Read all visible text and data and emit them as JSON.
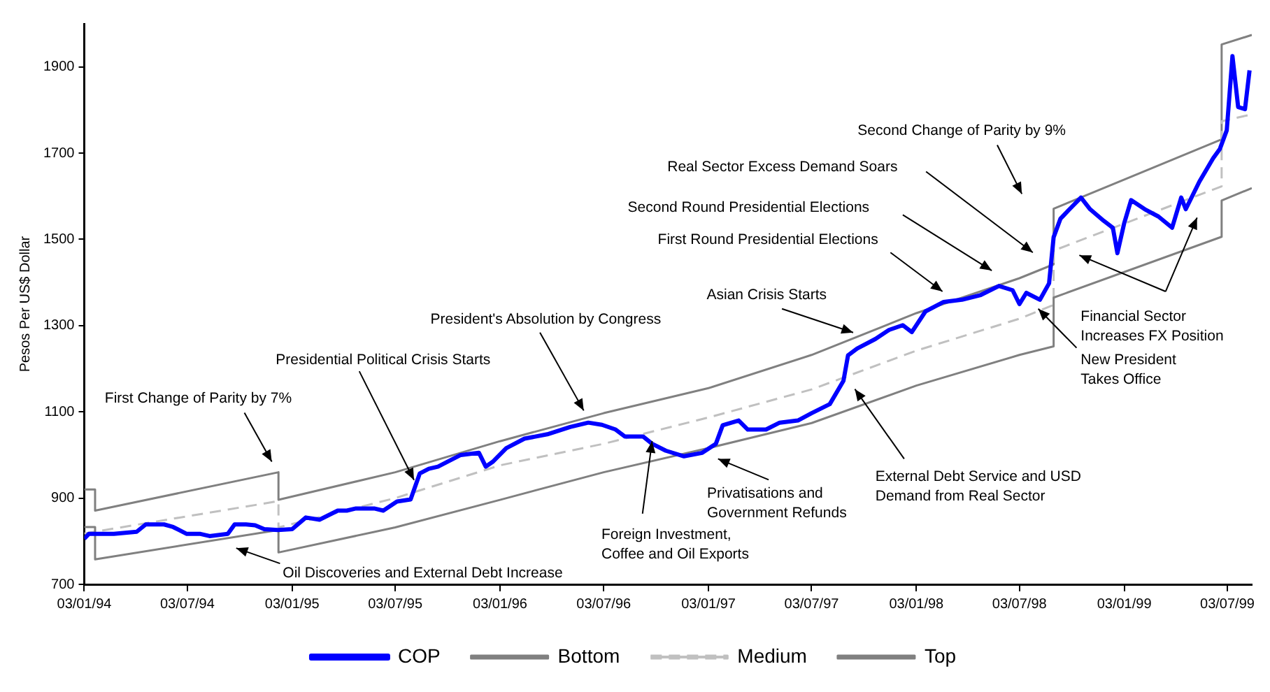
{
  "chart_data": {
    "type": "line",
    "ylabel": "Pesos Per US$ Dollar",
    "xlim": [
      "1994-01-03",
      "1999-08-15"
    ],
    "ylim": [
      700,
      2000
    ],
    "xticks": [
      {
        "value": "1994-01-03",
        "label": "03/01/94"
      },
      {
        "value": "1994-07-03",
        "label": "03/07/94"
      },
      {
        "value": "1995-01-03",
        "label": "03/01/95"
      },
      {
        "value": "1995-07-03",
        "label": "03/07/95"
      },
      {
        "value": "1996-01-03",
        "label": "03/01/96"
      },
      {
        "value": "1996-07-03",
        "label": "03/07/96"
      },
      {
        "value": "1997-01-03",
        "label": "03/01/97"
      },
      {
        "value": "1997-07-03",
        "label": "03/07/97"
      },
      {
        "value": "1998-01-03",
        "label": "03/01/98"
      },
      {
        "value": "1998-07-03",
        "label": "03/07/98"
      },
      {
        "value": "1999-01-03",
        "label": "03/01/99"
      },
      {
        "value": "1999-07-03",
        "label": "03/07/99"
      }
    ],
    "yticks": [
      700,
      900,
      1100,
      1300,
      1500,
      1700,
      1900
    ],
    "grid": false,
    "legend": "bottom",
    "marker": "none",
    "series": [
      {
        "name": "COP",
        "color": "#0000ff",
        "x": [
          "1994-01-03",
          "1994-01-11",
          "1994-01-31",
          "1994-02-24",
          "1994-04-05",
          "1994-04-21",
          "1994-05-23",
          "1994-06-08",
          "1994-07-02",
          "1994-07-26",
          "1994-08-11",
          "1994-09-12",
          "1994-09-24",
          "1994-10-14",
          "1994-10-30",
          "1994-11-15",
          "1994-12-09",
          "1995-01-03",
          "1995-01-27",
          "1995-02-20",
          "1995-03-24",
          "1995-04-09",
          "1995-04-25",
          "1995-05-27",
          "1995-06-12",
          "1995-07-06",
          "1995-07-30",
          "1995-08-15",
          "1995-08-31",
          "1995-09-16",
          "1995-10-02",
          "1995-10-26",
          "1995-11-27",
          "1995-12-09",
          "1995-12-21",
          "1996-01-14",
          "1996-02-15",
          "1996-03-26",
          "1996-05-05",
          "1996-06-06",
          "1996-06-30",
          "1996-07-24",
          "1996-08-09",
          "1996-09-10",
          "1996-09-26",
          "1996-10-20",
          "1996-11-21",
          "1996-12-23",
          "1997-01-16",
          "1997-01-28",
          "1997-02-25",
          "1997-03-13",
          "1997-04-14",
          "1997-05-08",
          "1997-06-09",
          "1997-07-03",
          "1997-08-04",
          "1997-08-28",
          "1997-09-05",
          "1997-09-21",
          "1997-10-23",
          "1997-11-16",
          "1997-12-10",
          "1997-12-26",
          "1998-01-19",
          "1998-02-20",
          "1998-03-24",
          "1998-04-26",
          "1998-05-28",
          "1998-06-21",
          "1998-07-03",
          "1998-07-15",
          "1998-08-08",
          "1998-08-24",
          "1998-09-01",
          "1998-09-13",
          "1998-09-29",
          "1998-10-19",
          "1998-11-04",
          "1998-11-28",
          "1998-12-14",
          "1998-12-22",
          "1999-01-03",
          "1999-01-15",
          "1999-02-08",
          "1999-03-04",
          "1999-03-28",
          "1999-04-13",
          "1999-04-21",
          "1999-05-15",
          "1999-06-08",
          "1999-06-20",
          "1999-07-02",
          "1999-07-12",
          "1999-07-22",
          "1999-08-03",
          "1999-08-11"
        ],
        "values": [
          806,
          817,
          817,
          817,
          822,
          839,
          839,
          833,
          817,
          817,
          812,
          817,
          839,
          839,
          837,
          828,
          826,
          828,
          855,
          850,
          871,
          871,
          876,
          876,
          871,
          892,
          897,
          957,
          968,
          973,
          984,
          1000,
          1005,
          973,
          984,
          1016,
          1038,
          1048,
          1065,
          1075,
          1070,
          1059,
          1043,
          1043,
          1026,
          1010,
          997,
          1005,
          1026,
          1069,
          1080,
          1059,
          1059,
          1075,
          1080,
          1097,
          1118,
          1172,
          1231,
          1247,
          1269,
          1290,
          1301,
          1285,
          1333,
          1355,
          1360,
          1371,
          1392,
          1382,
          1350,
          1376,
          1360,
          1398,
          1505,
          1548,
          1570,
          1597,
          1570,
          1543,
          1527,
          1468,
          1538,
          1591,
          1570,
          1553,
          1527,
          1597,
          1570,
          1634,
          1688,
          1710,
          1753,
          1925,
          1807,
          1802,
          1892
        ]
      },
      {
        "name": "Bottom",
        "color": "#808080",
        "x": [
          "1994-01-03",
          "1994-01-22",
          "1994-01-22",
          "1994-12-10",
          "1994-12-10",
          "1995-07-03",
          "1996-01-03",
          "1996-07-03",
          "1997-01-03",
          "1997-07-03",
          "1998-01-03",
          "1998-07-03",
          "1998-09-01",
          "1998-09-01",
          "1999-06-23",
          "1999-06-23",
          "1999-08-15"
        ],
        "values": [
          833,
          833,
          758,
          826,
          774,
          832,
          896,
          960,
          1016,
          1074,
          1161,
          1232,
          1252,
          1365,
          1506,
          1590,
          1619
        ]
      },
      {
        "name": "Medium",
        "color": "#c0c0c0",
        "line_style": "dashed",
        "x": [
          "1994-01-03",
          "1994-12-10",
          "1994-12-10",
          "1995-07-03",
          "1996-01-03",
          "1996-07-03",
          "1997-01-03",
          "1997-07-03",
          "1998-01-03",
          "1998-07-03",
          "1998-09-01",
          "1998-09-01",
          "1999-06-23",
          "1999-06-23",
          "1999-08-15"
        ],
        "values": [
          818,
          893,
          832,
          900,
          976,
          1026,
          1087,
          1152,
          1242,
          1316,
          1348,
          1474,
          1623,
          1774,
          1790
        ]
      },
      {
        "name": "Top",
        "color": "#808080",
        "x": [
          "1994-01-03",
          "1994-01-22",
          "1994-01-22",
          "1994-12-10",
          "1994-12-10",
          "1995-07-03",
          "1996-01-03",
          "1996-07-03",
          "1997-01-03",
          "1997-07-03",
          "1998-01-03",
          "1998-07-03",
          "1998-09-01",
          "1998-09-01",
          "1999-06-23",
          "1999-06-23",
          "1999-08-15"
        ],
        "values": [
          920,
          920,
          871,
          960,
          896,
          960,
          1032,
          1097,
          1155,
          1232,
          1329,
          1410,
          1442,
          1571,
          1732,
          1952,
          1974
        ]
      }
    ],
    "annotations": [
      "First Change of Parity by 7%",
      "Oil Discoveries and External Debt Increase",
      {
        "text": "Presidential Political Crisis Starts",
        "x": "1995-08-05",
        "y": 942
      },
      {
        "text": "President's Absolution by Congress",
        "x": "1996-05-29",
        "y": 1103
      },
      {
        "text": "Foreign Investment,\nCoffee and Oil Exports",
        "x": "1996-09-26",
        "y": 1032
      },
      "Privatisations and\nGovernment Refunds",
      {
        "text": "Asian Crisis Starts",
        "x": "1997-09-14",
        "y": 1284
      },
      "External Debt Service and USD\nDemand from Real Sector",
      "First Round Presidential Elections",
      "Second Round Presidential Elections",
      "Real Sector Excess Demand Soars",
      "Second Change of Parity by 9%",
      "Financial Sector\nIncreases FX Position",
      {
        "text": "New President\nTakes Office",
        "x": "1998-08-05",
        "y": 1339
      }
    ]
  }
}
